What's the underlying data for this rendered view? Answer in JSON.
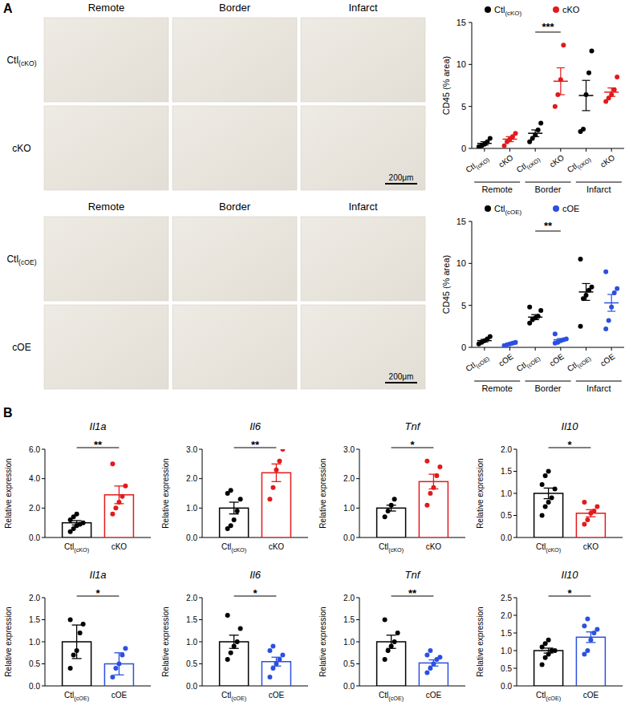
{
  "panels": [
    "A",
    "B"
  ],
  "micrographs": {
    "columns": [
      "Remote",
      "Border",
      "Infarct"
    ],
    "rows": [
      [
        "Ctl(cKO)",
        "cKO"
      ],
      [
        "Ctl(cOE)",
        "cOE"
      ]
    ],
    "scale_bar": "200μm"
  },
  "chart_data": [
    {
      "type": "dot",
      "y_label": "CD45 (% area)",
      "groups": [
        "Remote",
        "Border",
        "Infarct"
      ],
      "categories": [
        "Ctl(cKO)",
        "cKO",
        "Ctl(cKO)",
        "cKO",
        "Ctl(cKO)",
        "cKO"
      ],
      "ylim": [
        0,
        15
      ],
      "yticks": [
        0,
        5,
        10,
        15
      ],
      "legend": "top",
      "series": [
        {
          "name": "Ctl(cKO)",
          "color": "#000000",
          "values": [
            [
              0.2,
              0.3,
              0.5,
              0.8,
              1.2
            ],
            [
              0.8,
              1.2,
              1.6,
              2.2,
              3.0
            ],
            [
              2.0,
              2.3,
              6.4,
              9.0,
              11.6
            ]
          ],
          "mean": [
            0.6,
            1.8,
            6.3
          ],
          "sem": [
            0.2,
            0.4,
            1.8
          ]
        },
        {
          "name": "cKO",
          "color": "#e31a1c",
          "values": [
            [
              0.3,
              0.8,
              1.1,
              1.4,
              1.8
            ],
            [
              5.0,
              6.4,
              8.2,
              12.3
            ],
            [
              5.6,
              6.0,
              6.4,
              7.0,
              8.5
            ]
          ],
          "mean": [
            1.1,
            8.0,
            6.7
          ],
          "sem": [
            0.3,
            1.6,
            0.5
          ]
        }
      ],
      "annotations": [
        {
          "text": "***",
          "group": "Border"
        }
      ]
    },
    {
      "type": "dot",
      "y_label": "CD45 (% area)",
      "groups": [
        "Remote",
        "Border",
        "Infarct"
      ],
      "categories": [
        "Ctl(cOE)",
        "cOE",
        "Ctl(cOE)",
        "cOE",
        "Ctl(cOE)",
        "cOE"
      ],
      "ylim": [
        0,
        15
      ],
      "yticks": [
        0,
        5,
        10,
        15
      ],
      "legend": "top",
      "series": [
        {
          "name": "Ctl(cOE)",
          "color": "#000000",
          "values": [
            [
              0.4,
              0.6,
              0.8,
              1.0,
              1.3
            ],
            [
              2.9,
              3.3,
              3.5,
              3.7,
              4.4,
              4.8
            ],
            [
              2.5,
              5.8,
              6.2,
              6.8,
              7.2,
              10.5
            ]
          ],
          "mean": [
            0.8,
            3.6,
            6.6
          ],
          "sem": [
            0.15,
            0.3,
            1.0
          ]
        },
        {
          "name": "cOE",
          "color": "#2b50e0",
          "values": [
            [
              0.2,
              0.3,
              0.4,
              0.5,
              0.6
            ],
            [
              0.5,
              0.6,
              0.8,
              0.9,
              1.0,
              1.6
            ],
            [
              2.2,
              3.2,
              4.8,
              6.5,
              7.0,
              9.0
            ]
          ],
          "mean": [
            0.4,
            0.9,
            5.3
          ],
          "sem": [
            0.07,
            0.15,
            1.0
          ]
        }
      ],
      "annotations": [
        {
          "text": "**",
          "group": "Border"
        }
      ]
    },
    {
      "type": "bar",
      "title": "Il1a",
      "y_label": "Relative expression",
      "categories": [
        "Ctl(cKO)",
        "cKO"
      ],
      "values": [
        1.0,
        2.9
      ],
      "errors": [
        0.15,
        0.6
      ],
      "points": [
        [
          0.4,
          0.6,
          0.8,
          0.9,
          1.0,
          1.2,
          1.4,
          1.6
        ],
        [
          1.6,
          2.0,
          2.4,
          2.8,
          3.5,
          5.0
        ]
      ],
      "colors": [
        "#000000",
        "#e31a1c"
      ],
      "ylim": [
        0,
        6
      ],
      "yticks": [
        {
          "value": 0,
          "label": "0.0"
        },
        {
          "value": 2,
          "label": "2.0"
        },
        {
          "value": 4,
          "label": "4.0"
        },
        {
          "value": 6,
          "label": "6.0"
        }
      ],
      "annotations": [
        {
          "text": "**"
        }
      ]
    },
    {
      "type": "bar",
      "title": "Il6",
      "y_label": "Relative expression",
      "categories": [
        "Ctl(cKO)",
        "cKO"
      ],
      "values": [
        1.0,
        2.2
      ],
      "errors": [
        0.2,
        0.3
      ],
      "points": [
        [
          0.3,
          0.4,
          0.6,
          0.9,
          1.3,
          1.5,
          1.6
        ],
        [
          1.3,
          1.7,
          2.3,
          2.6,
          3.0
        ]
      ],
      "colors": [
        "#000000",
        "#e31a1c"
      ],
      "ylim": [
        0,
        3
      ],
      "yticks": [
        {
          "value": 0,
          "label": "0.0"
        },
        {
          "value": 1,
          "label": "1.0"
        },
        {
          "value": 2,
          "label": "2.0"
        },
        {
          "value": 3,
          "label": "3.0"
        }
      ],
      "annotations": [
        {
          "text": "**"
        }
      ]
    },
    {
      "type": "bar",
      "title": "Tnf",
      "y_label": "Relative expression",
      "categories": [
        "Ctl(cKO)",
        "cKO"
      ],
      "values": [
        1.0,
        1.9
      ],
      "errors": [
        0.1,
        0.25
      ],
      "points": [
        [
          0.7,
          0.9,
          1.1,
          1.3
        ],
        [
          1.1,
          1.5,
          1.7,
          2.1,
          2.4,
          2.6
        ]
      ],
      "colors": [
        "#000000",
        "#e31a1c"
      ],
      "ylim": [
        0,
        3
      ],
      "yticks": [
        {
          "value": 0,
          "label": "0.0"
        },
        {
          "value": 1,
          "label": "1.0"
        },
        {
          "value": 2,
          "label": "2.0"
        },
        {
          "value": 3,
          "label": "3.0"
        }
      ],
      "annotations": [
        {
          "text": "*"
        }
      ]
    },
    {
      "type": "bar",
      "title": "Il10",
      "y_label": "Relative expression",
      "categories": [
        "Ctl(cKO)",
        "cKO"
      ],
      "values": [
        1.0,
        0.55
      ],
      "errors": [
        0.12,
        0.08
      ],
      "points": [
        [
          0.5,
          0.7,
          0.8,
          0.9,
          1.1,
          1.2,
          1.4,
          1.5
        ],
        [
          0.3,
          0.4,
          0.55,
          0.6,
          0.7,
          0.8
        ]
      ],
      "colors": [
        "#000000",
        "#e31a1c"
      ],
      "ylim": [
        0,
        2
      ],
      "yticks": [
        {
          "value": 0,
          "label": "0.0"
        },
        {
          "value": 0.5,
          "label": "0.5"
        },
        {
          "value": 1,
          "label": "1.0"
        },
        {
          "value": 1.5,
          "label": "1.5"
        },
        {
          "value": 2,
          "label": "2.0"
        }
      ],
      "annotations": [
        {
          "text": "*"
        }
      ]
    },
    {
      "type": "bar",
      "title": "Il1a",
      "y_label": "Relative expression",
      "categories": [
        "Ctl(cOE)",
        "cOE"
      ],
      "values": [
        1.0,
        0.5
      ],
      "errors": [
        0.38,
        0.25
      ],
      "points": [
        [
          0.4,
          0.7,
          0.8,
          1.2,
          1.4,
          1.5
        ],
        [
          0.2,
          0.4,
          0.5,
          0.7,
          0.85
        ]
      ],
      "colors": [
        "#000000",
        "#2b50e0"
      ],
      "ylim": [
        0,
        2
      ],
      "yticks": [
        {
          "value": 0,
          "label": "0.0"
        },
        {
          "value": 0.5,
          "label": "0.5"
        },
        {
          "value": 1,
          "label": "1.0"
        },
        {
          "value": 1.5,
          "label": "1.5"
        },
        {
          "value": 2,
          "label": "2.0"
        }
      ],
      "annotations": [
        {
          "text": "*"
        }
      ]
    },
    {
      "type": "bar",
      "title": "Il6",
      "y_label": "Relative expression",
      "categories": [
        "Ctl(cOE)",
        "cOE"
      ],
      "values": [
        1.0,
        0.55
      ],
      "errors": [
        0.15,
        0.1
      ],
      "points": [
        [
          0.6,
          0.75,
          0.9,
          1.0,
          1.3,
          1.6
        ],
        [
          0.2,
          0.4,
          0.5,
          0.6,
          0.7,
          0.8,
          0.9
        ]
      ],
      "colors": [
        "#000000",
        "#2b50e0"
      ],
      "ylim": [
        0,
        2
      ],
      "yticks": [
        {
          "value": 0,
          "label": "0.0"
        },
        {
          "value": 0.5,
          "label": "0.5"
        },
        {
          "value": 1,
          "label": "1.0"
        },
        {
          "value": 1.5,
          "label": "1.5"
        },
        {
          "value": 2,
          "label": "2.0"
        }
      ],
      "annotations": [
        {
          "text": "*"
        }
      ]
    },
    {
      "type": "bar",
      "title": "Tnf",
      "y_label": "Relative expression",
      "categories": [
        "Ctl(cOE)",
        "cOE"
      ],
      "values": [
        1.0,
        0.52
      ],
      "errors": [
        0.15,
        0.07
      ],
      "points": [
        [
          0.6,
          0.8,
          0.9,
          1.0,
          1.2,
          1.5
        ],
        [
          0.3,
          0.4,
          0.5,
          0.6,
          0.65,
          0.7,
          0.8
        ]
      ],
      "colors": [
        "#000000",
        "#2b50e0"
      ],
      "ylim": [
        0,
        2
      ],
      "yticks": [
        {
          "value": 0,
          "label": "0.0"
        },
        {
          "value": 0.5,
          "label": "0.5"
        },
        {
          "value": 1,
          "label": "1.0"
        },
        {
          "value": 1.5,
          "label": "1.5"
        },
        {
          "value": 2,
          "label": "2.0"
        }
      ],
      "annotations": [
        {
          "text": "**"
        }
      ]
    },
    {
      "type": "bar",
      "title": "Il10",
      "y_label": "Relative expression",
      "categories": [
        "Ctl(cOE)",
        "cOE"
      ],
      "values": [
        1.0,
        1.38
      ],
      "errors": [
        0.07,
        0.15
      ],
      "points": [
        [
          0.6,
          0.8,
          0.9,
          1.0,
          1.0,
          1.1,
          1.2,
          1.3
        ],
        [
          0.9,
          1.0,
          1.3,
          1.5,
          1.6,
          1.7,
          1.9
        ]
      ],
      "colors": [
        "#000000",
        "#2b50e0"
      ],
      "ylim": [
        0,
        2.5
      ],
      "yticks": [
        {
          "value": 0,
          "label": "0.0"
        },
        {
          "value": 0.5,
          "label": "0.5"
        },
        {
          "value": 1,
          "label": "1.0"
        },
        {
          "value": 1.5,
          "label": "1.5"
        },
        {
          "value": 2,
          "label": "2.0"
        },
        {
          "value": 2.5,
          "label": "2.5"
        }
      ],
      "annotations": [
        {
          "text": "*"
        }
      ]
    }
  ]
}
